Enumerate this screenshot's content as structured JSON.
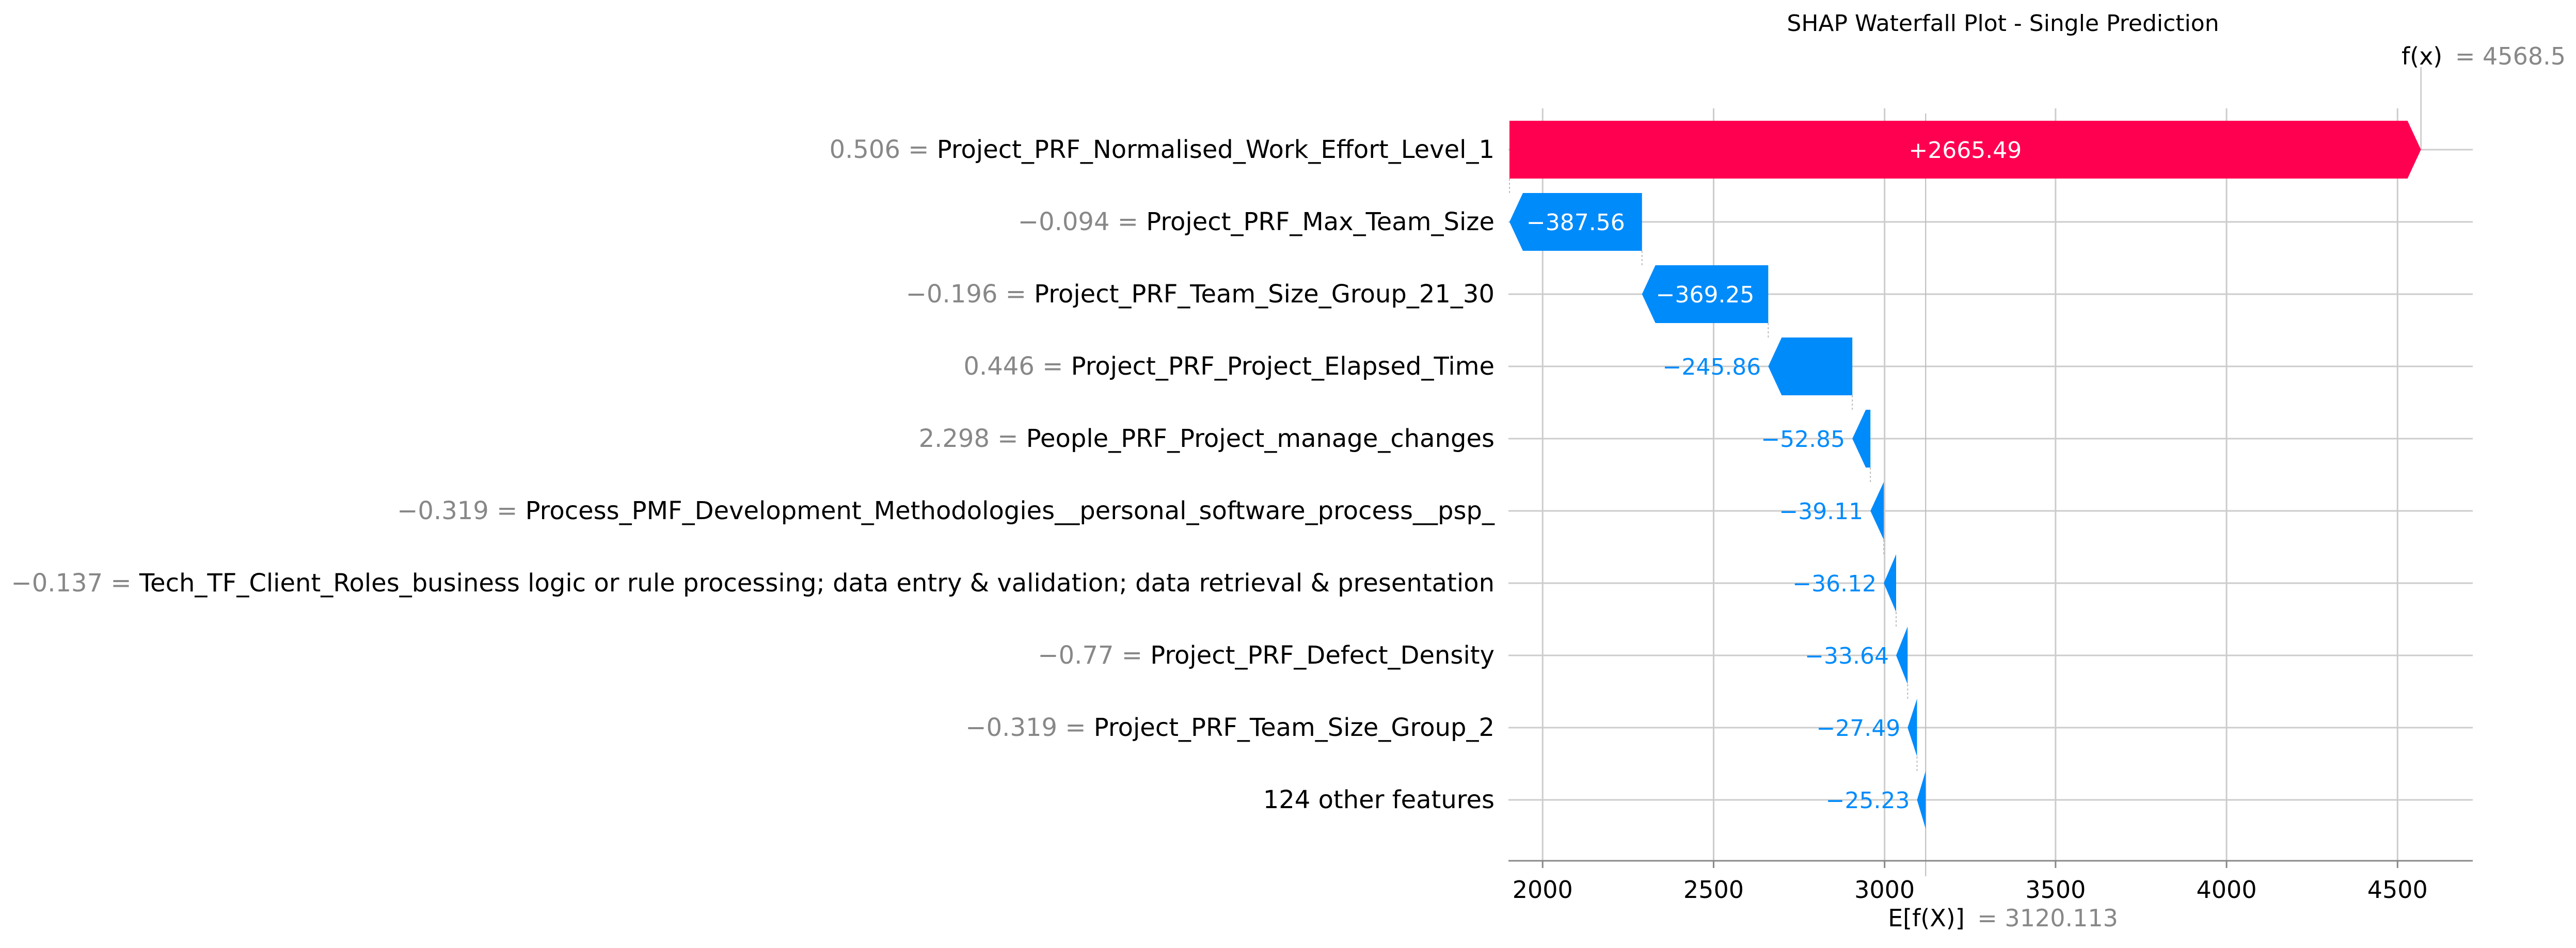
{
  "chart_data": {
    "type": "waterfall",
    "title": "SHAP Waterfall Plot - Single Prediction",
    "base_value": 3120.113,
    "base_label": "E[f(X)]",
    "base_value_text": "= 3120.113",
    "output_value": 4568.5,
    "output_label": "f(x)",
    "output_value_text": "= 4568.5",
    "xlim": [
      1900,
      4720
    ],
    "xticks": [
      2000,
      2500,
      3000,
      3500,
      4000,
      4500
    ],
    "grid": true,
    "colors": {
      "positive": "#ff0051",
      "negative": "#008bfb",
      "grid": "#cccccc",
      "muted": "#888888"
    },
    "features": [
      {
        "value": "0.506",
        "name": "Project_PRF_Normalised_Work_Effort_Level_1",
        "shap": 2665.49,
        "label": "+2665.49"
      },
      {
        "value": "−0.094",
        "name": "Project_PRF_Max_Team_Size",
        "shap": -387.56,
        "label": "−387.56"
      },
      {
        "value": "−0.196",
        "name": "Project_PRF_Team_Size_Group_21_30",
        "shap": -369.25,
        "label": "−369.25"
      },
      {
        "value": "0.446",
        "name": "Project_PRF_Project_Elapsed_Time",
        "shap": -245.86,
        "label": "−245.86"
      },
      {
        "value": "2.298",
        "name": "People_PRF_Project_manage_changes",
        "shap": -52.85,
        "label": "−52.85"
      },
      {
        "value": "−0.319",
        "name": "Process_PMF_Development_Methodologies__personal_software_process__psp_",
        "shap": -39.11,
        "label": "−39.11"
      },
      {
        "value": "−0.137",
        "name": "Tech_TF_Client_Roles_business logic or rule processing; data entry & validation; data retrieval & presentation",
        "shap": -36.12,
        "label": "−36.12"
      },
      {
        "value": "−0.77",
        "name": "Project_PRF_Defect_Density",
        "shap": -33.64,
        "label": "−33.64"
      },
      {
        "value": "−0.319",
        "name": "Project_PRF_Team_Size_Group_2",
        "shap": -27.49,
        "label": "−27.49"
      },
      {
        "value": "",
        "name": "124 other features",
        "shap": -25.23,
        "label": "−25.23"
      }
    ]
  }
}
